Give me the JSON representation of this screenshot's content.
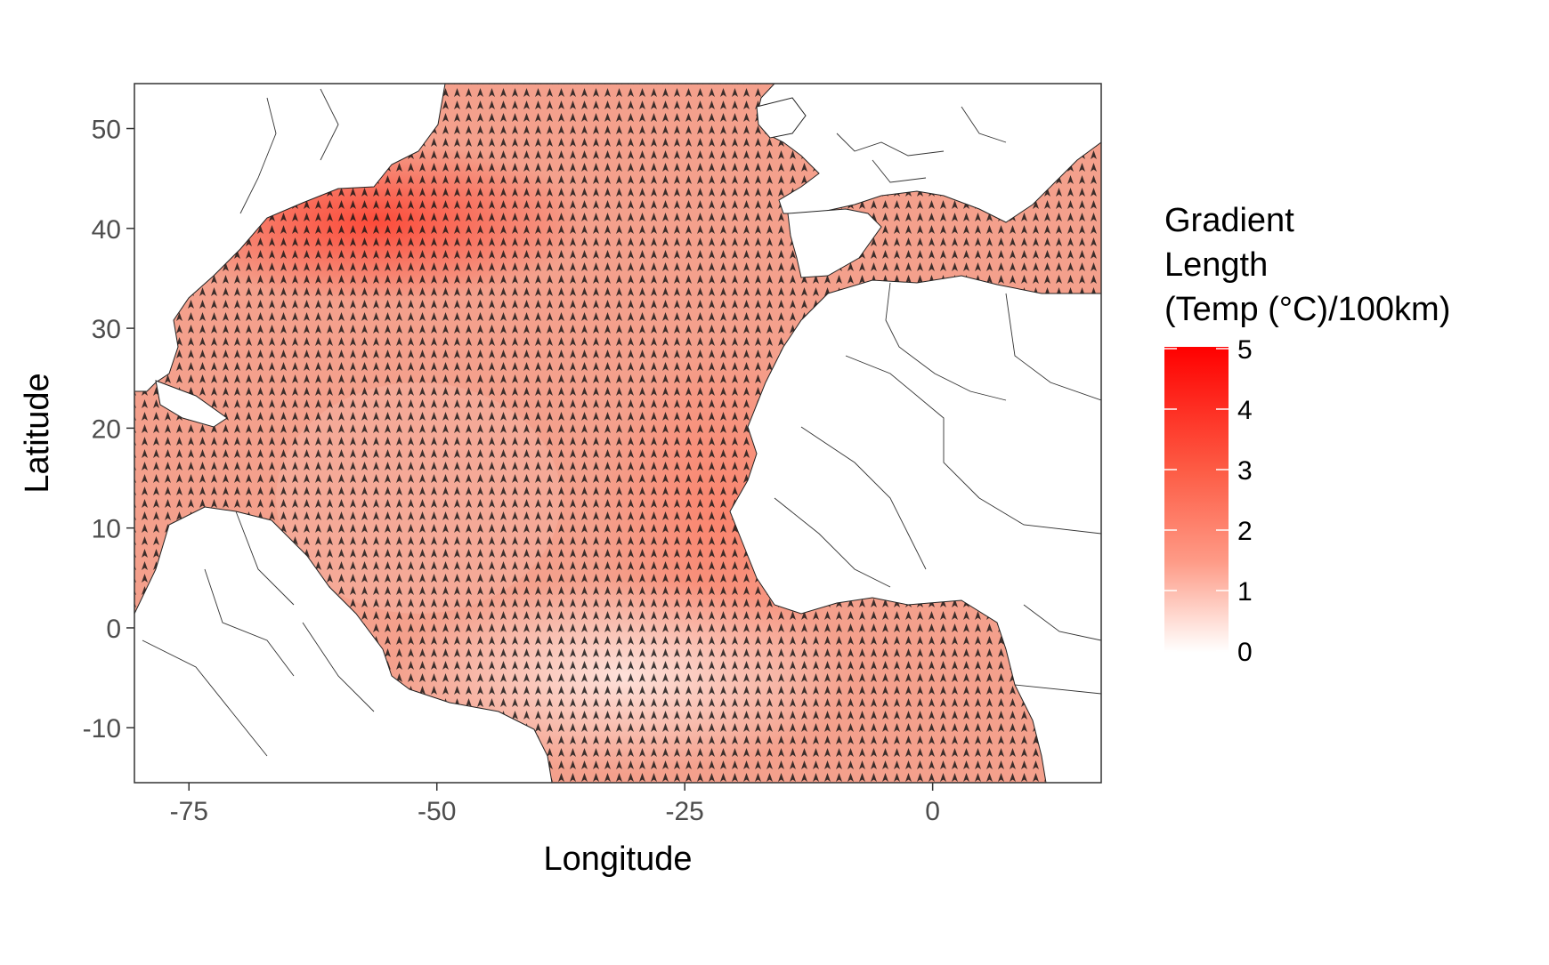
{
  "chart_data": {
    "type": "map",
    "xlabel": "Longitude",
    "ylabel": "Latitude",
    "xlim": [
      -80.5,
      17
    ],
    "ylim": [
      -15.5,
      54.5
    ],
    "x_ticks": [
      -75,
      -50,
      -25,
      0
    ],
    "y_ticks": [
      -10,
      0,
      10,
      20,
      30,
      40,
      50
    ],
    "legend": {
      "title_lines": [
        "Gradient",
        "Length",
        "(Temp (°C)/100km)"
      ],
      "ticks": [
        0,
        1,
        2,
        3,
        4,
        5
      ],
      "range": [
        0,
        5
      ],
      "color_low": "#ffffff",
      "color_high": "#ff0000",
      "placement": "right"
    },
    "fill_variable": "gradient length",
    "arrow_color": "#000000",
    "land_color": "#ffffff",
    "panel_border": true,
    "grid": false
  }
}
